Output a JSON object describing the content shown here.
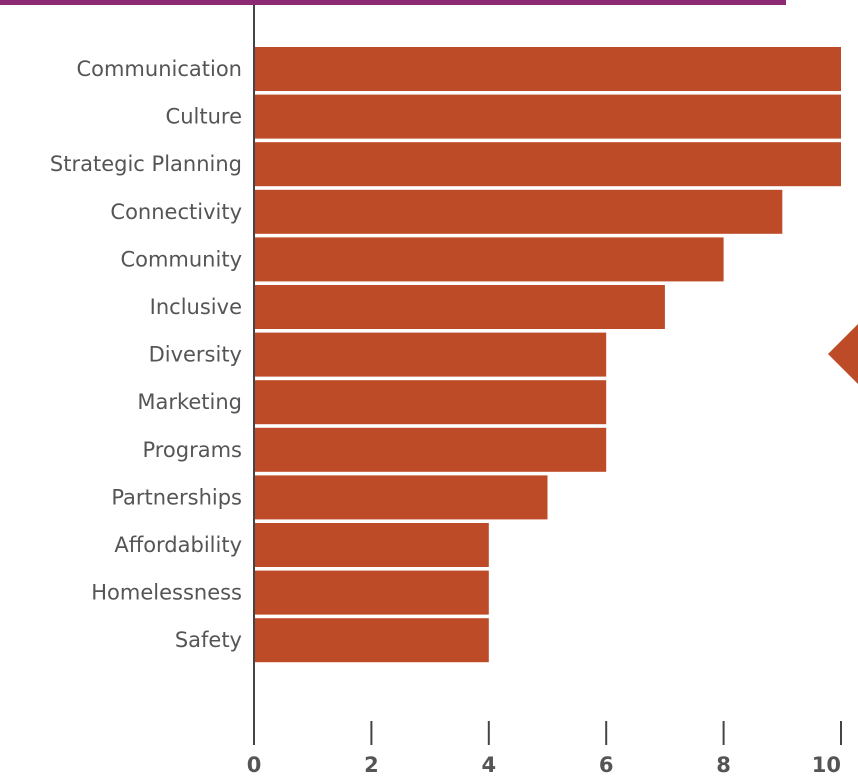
{
  "colors": {
    "bar": "#bd4b27",
    "top_band": "#8c2a73",
    "axis": "#444444",
    "text": "#555555",
    "marker": "#bd4b27"
  },
  "decor": {
    "right_marker": "arrow-left-marker"
  },
  "chart_data": {
    "type": "bar",
    "orientation": "horizontal",
    "title": "",
    "xlabel": "",
    "ylabel": "",
    "categories": [
      "Communication",
      "Culture",
      "Strategic Planning",
      "Connectivity",
      "Community",
      "Inclusive",
      "Diversity",
      "Marketing",
      "Programs",
      "Partnerships",
      "Affordability",
      "Homelessness",
      "Safety"
    ],
    "values": [
      10,
      10,
      10,
      9,
      8,
      7,
      6,
      6,
      6,
      5,
      4,
      4,
      4
    ],
    "xlim": [
      0,
      10
    ],
    "xticks": [
      "0",
      "2",
      "4",
      "6",
      "8",
      "10"
    ],
    "grid": false,
    "legend": "none"
  }
}
